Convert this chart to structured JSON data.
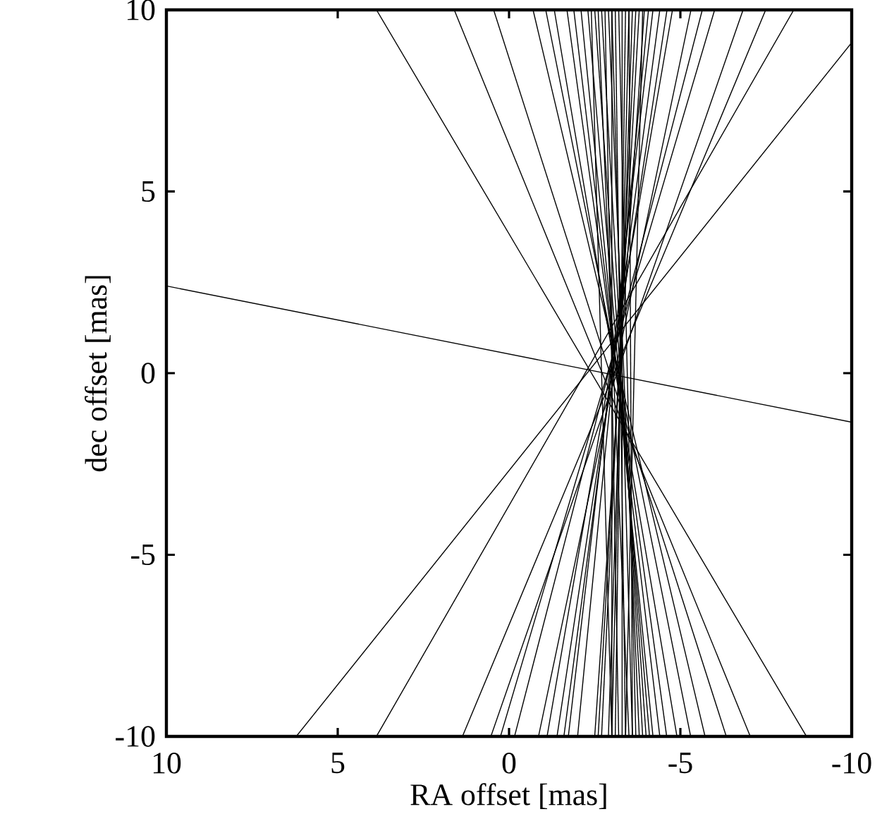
{
  "chart_data": {
    "type": "line",
    "xlabel": "RA offset [mas]",
    "ylabel": "dec offset [mas]",
    "xlim": [
      10,
      -10
    ],
    "ylim": [
      -10,
      10
    ],
    "xticks": [
      10,
      5,
      0,
      -5,
      -10
    ],
    "yticks": [
      -10,
      -5,
      0,
      5,
      10
    ],
    "grid": false,
    "marker": "none",
    "line_style": "solid",
    "series": [
      {
        "color": "#000000",
        "x": [
          10,
          -10
        ],
        "values": [
          2.4,
          -1.35
        ]
      },
      {
        "color": "#000000",
        "x": [
          6.21,
          -10
        ],
        "values": [
          -10,
          9.1
        ]
      },
      {
        "color": "#000000",
        "x": [
          3.87,
          -8.31
        ],
        "values": [
          -10,
          10
        ]
      },
      {
        "color": "#000000",
        "x": [
          1.36,
          -7.49
        ],
        "values": [
          -10,
          10
        ]
      },
      {
        "color": "#000000",
        "x": [
          0.53,
          -6.83
        ],
        "values": [
          -10,
          10
        ]
      },
      {
        "color": "#000000",
        "x": [
          0.25,
          -6.0
        ],
        "values": [
          -10,
          10
        ]
      },
      {
        "color": "#000000",
        "x": [
          -0.16,
          -5.64
        ],
        "values": [
          -10,
          10
        ]
      },
      {
        "color": "#000000",
        "x": [
          -0.86,
          -5.31
        ],
        "values": [
          -10,
          10
        ]
      },
      {
        "color": "#000000",
        "x": [
          -1.11,
          -4.77
        ],
        "values": [
          -10,
          10
        ]
      },
      {
        "color": "#000000",
        "x": [
          -1.4,
          -4.61
        ],
        "values": [
          -10,
          10
        ]
      },
      {
        "color": "#000000",
        "x": [
          -1.6,
          -4.4
        ],
        "values": [
          -10,
          10
        ]
      },
      {
        "color": "#000000",
        "x": [
          -1.73,
          -4.2
        ],
        "values": [
          -10,
          10
        ]
      },
      {
        "color": "#000000",
        "x": [
          -2.0,
          -4.07
        ],
        "values": [
          -10,
          10
        ]
      },
      {
        "color": "#000000",
        "x": [
          3.87,
          -8.68
        ],
        "values": [
          10,
          -10
        ]
      },
      {
        "color": "#000000",
        "x": [
          1.6,
          -7.04
        ],
        "values": [
          10,
          -10
        ]
      },
      {
        "color": "#000000",
        "x": [
          0.45,
          -6.34
        ],
        "values": [
          10,
          -10
        ]
      },
      {
        "color": "#000000",
        "x": [
          -0.7,
          -5.72
        ],
        "values": [
          10,
          -10
        ]
      },
      {
        "color": "#000000",
        "x": [
          -1.07,
          -5.3
        ],
        "values": [
          10,
          -10
        ]
      },
      {
        "color": "#000000",
        "x": [
          -1.32,
          -4.9
        ],
        "values": [
          10,
          -10
        ]
      },
      {
        "color": "#000000",
        "x": [
          -1.69,
          -4.6
        ],
        "values": [
          10,
          -10
        ]
      },
      {
        "color": "#000000",
        "x": [
          -1.89,
          -4.4
        ],
        "values": [
          10,
          -10
        ]
      },
      {
        "color": "#000000",
        "x": [
          -2.1,
          -4.2
        ],
        "values": [
          10,
          -10
        ]
      },
      {
        "color": "#000000",
        "x": [
          -2.3,
          -4.1
        ],
        "values": [
          10,
          -10
        ]
      },
      {
        "color": "#000000",
        "x": [
          -2.4,
          -3.0
        ],
        "values": [
          10,
          -10
        ]
      },
      {
        "color": "#000000",
        "x": [
          -2.5,
          -4.0
        ],
        "values": [
          10,
          -10
        ]
      },
      {
        "color": "#000000",
        "x": [
          -2.6,
          -3.5
        ],
        "values": [
          10,
          -10
        ]
      },
      {
        "color": "#000000",
        "x": [
          -2.7,
          -3.9
        ],
        "values": [
          10,
          -10
        ]
      },
      {
        "color": "#000000",
        "x": [
          -2.8,
          -3.2
        ],
        "values": [
          10,
          -10
        ]
      },
      {
        "color": "#000000",
        "x": [
          -2.9,
          -3.8
        ],
        "values": [
          10,
          -10
        ]
      },
      {
        "color": "#000000",
        "x": [
          -3.0,
          -3.6
        ],
        "values": [
          10,
          -10
        ]
      },
      {
        "color": "#000000",
        "x": [
          -3.1,
          -3.4
        ],
        "values": [
          10,
          -10
        ]
      },
      {
        "color": "#000000",
        "x": [
          -3.2,
          -3.7
        ],
        "values": [
          10,
          -10
        ]
      },
      {
        "color": "#000000",
        "x": [
          -3.3,
          -3.3
        ],
        "values": [
          10,
          -10
        ]
      },
      {
        "color": "#000000",
        "x": [
          -3.4,
          -3.1
        ],
        "values": [
          10,
          -10
        ]
      },
      {
        "color": "#000000",
        "x": [
          -3.5,
          -3.0
        ],
        "values": [
          10,
          -10
        ]
      },
      {
        "color": "#000000",
        "x": [
          -3.6,
          -2.9
        ],
        "values": [
          10,
          -10
        ]
      },
      {
        "color": "#000000",
        "x": [
          -3.7,
          -2.7
        ],
        "values": [
          10,
          -10
        ]
      },
      {
        "color": "#000000",
        "x": [
          -3.8,
          -2.6
        ],
        "values": [
          10,
          -10
        ]
      },
      {
        "color": "#000000",
        "x": [
          -3.9,
          -3.4
        ],
        "values": [
          10,
          -10
        ]
      },
      {
        "color": "#000000",
        "x": [
          -3.95,
          -2.5
        ],
        "values": [
          10,
          -10
        ]
      },
      {
        "color": "#000000",
        "x": [
          -3.5,
          -3.6
        ],
        "values": [
          10,
          -10
        ]
      },
      {
        "color": "#000000",
        "x": [
          -3.0,
          -3.0
        ],
        "values": [
          10,
          -10
        ]
      }
    ]
  }
}
